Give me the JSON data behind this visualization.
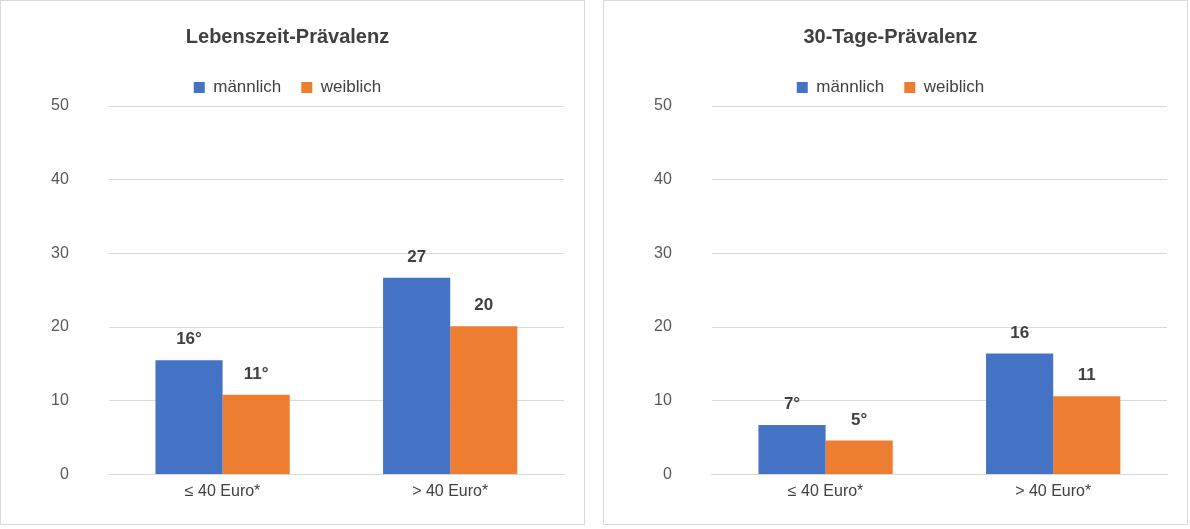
{
  "chart_data": [
    {
      "type": "bar",
      "title": "Lebenszeit-Prävalenz",
      "categories": [
        "≤ 40 Euro*",
        "> 40 Euro*"
      ],
      "series": [
        {
          "name": "männlich",
          "color": "#4472c4",
          "values": [
            15.5,
            26.7
          ],
          "value_labels": [
            "16°",
            "27"
          ]
        },
        {
          "name": "weiblich",
          "color": "#ed7d31",
          "values": [
            10.8,
            20.1
          ],
          "value_labels": [
            "11°",
            "20"
          ]
        }
      ],
      "ylim": [
        0,
        50
      ],
      "yticks": [
        0,
        10,
        20,
        30,
        40,
        50
      ],
      "grid": "y",
      "legend": "top"
    },
    {
      "type": "bar",
      "title": "30-Tage-Prävalenz",
      "categories": [
        "≤ 40 Euro*",
        "> 40 Euro*"
      ],
      "series": [
        {
          "name": "männlich",
          "color": "#4472c4",
          "values": [
            6.7,
            16.4
          ],
          "value_labels": [
            "7°",
            "16"
          ]
        },
        {
          "name": "weiblich",
          "color": "#ed7d31",
          "values": [
            4.6,
            10.6
          ],
          "value_labels": [
            "5°",
            "11"
          ]
        }
      ],
      "ylim": [
        0,
        50
      ],
      "yticks": [
        0,
        10,
        20,
        30,
        40,
        50
      ],
      "grid": "y",
      "legend": "top"
    }
  ]
}
